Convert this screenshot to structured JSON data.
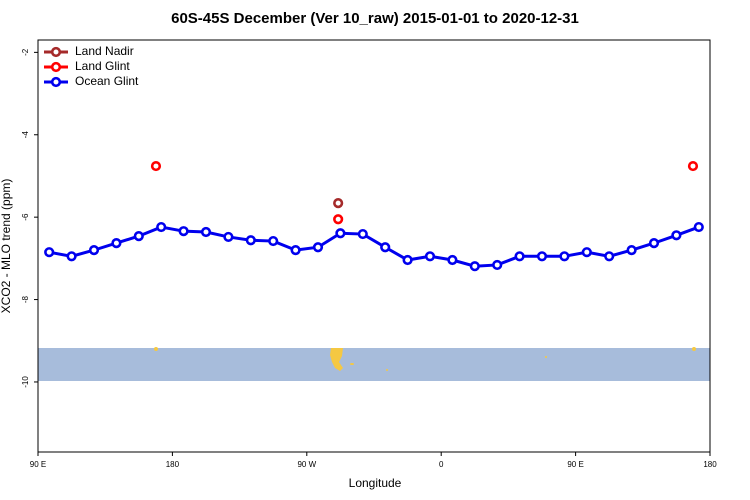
{
  "chart_data": {
    "type": "line",
    "title": "60S-45S December (Ver 10_raw)   2015-01-01 to 2020-12-31",
    "x_label": "Longitude",
    "y_label": "XCO2 - MLO trend (ppm)",
    "xlim": [
      90,
      540
    ],
    "ylim": [
      -11.7,
      -1.7
    ],
    "xticks": [
      {
        "value": 90,
        "label": "90 E"
      },
      {
        "value": 180,
        "label": "180"
      },
      {
        "value": 270,
        "label": "90 W"
      },
      {
        "value": 360,
        "label": "0"
      },
      {
        "value": 450,
        "label": "90 E"
      },
      {
        "value": 540,
        "label": "180"
      }
    ],
    "yticks": [
      -2,
      -4,
      -6,
      -8,
      -10
    ],
    "legend": "top-left",
    "series": [
      {
        "name": "Land Nadir",
        "color": "#a52a2a",
        "connect": false,
        "x": [
          291
        ],
        "values": [
          -5.66
        ]
      },
      {
        "name": "Land Glint",
        "color": "#ff0000",
        "connect": false,
        "x": [
          169,
          291,
          528.6
        ],
        "values": [
          -4.76,
          -6.05,
          -4.76
        ]
      },
      {
        "name": "Ocean Glint",
        "color": "#0000ee",
        "connect": true,
        "x": [
          97.5,
          112.5,
          127.5,
          142.5,
          157.5,
          172.5,
          187.5,
          202.5,
          217.5,
          232.5,
          247.5,
          262.5,
          277.5,
          292.5,
          307.5,
          322.5,
          337.5,
          352.5,
          367.5,
          382.5,
          397.5,
          412.5,
          427.5,
          442.5,
          457.5,
          472.5,
          487.5,
          502.5,
          517.5,
          532.5
        ],
        "values": [
          -6.85,
          -6.95,
          -6.8,
          -6.63,
          -6.46,
          -6.24,
          -6.34,
          -6.36,
          -6.48,
          -6.56,
          -6.58,
          -6.8,
          -6.73,
          -6.39,
          -6.41,
          -6.73,
          -7.04,
          -6.95,
          -7.04,
          -7.19,
          -7.16,
          -6.95,
          -6.95,
          -6.95,
          -6.85,
          -6.95,
          -6.8,
          -6.63,
          -6.44,
          -6.24
        ]
      }
    ]
  }
}
